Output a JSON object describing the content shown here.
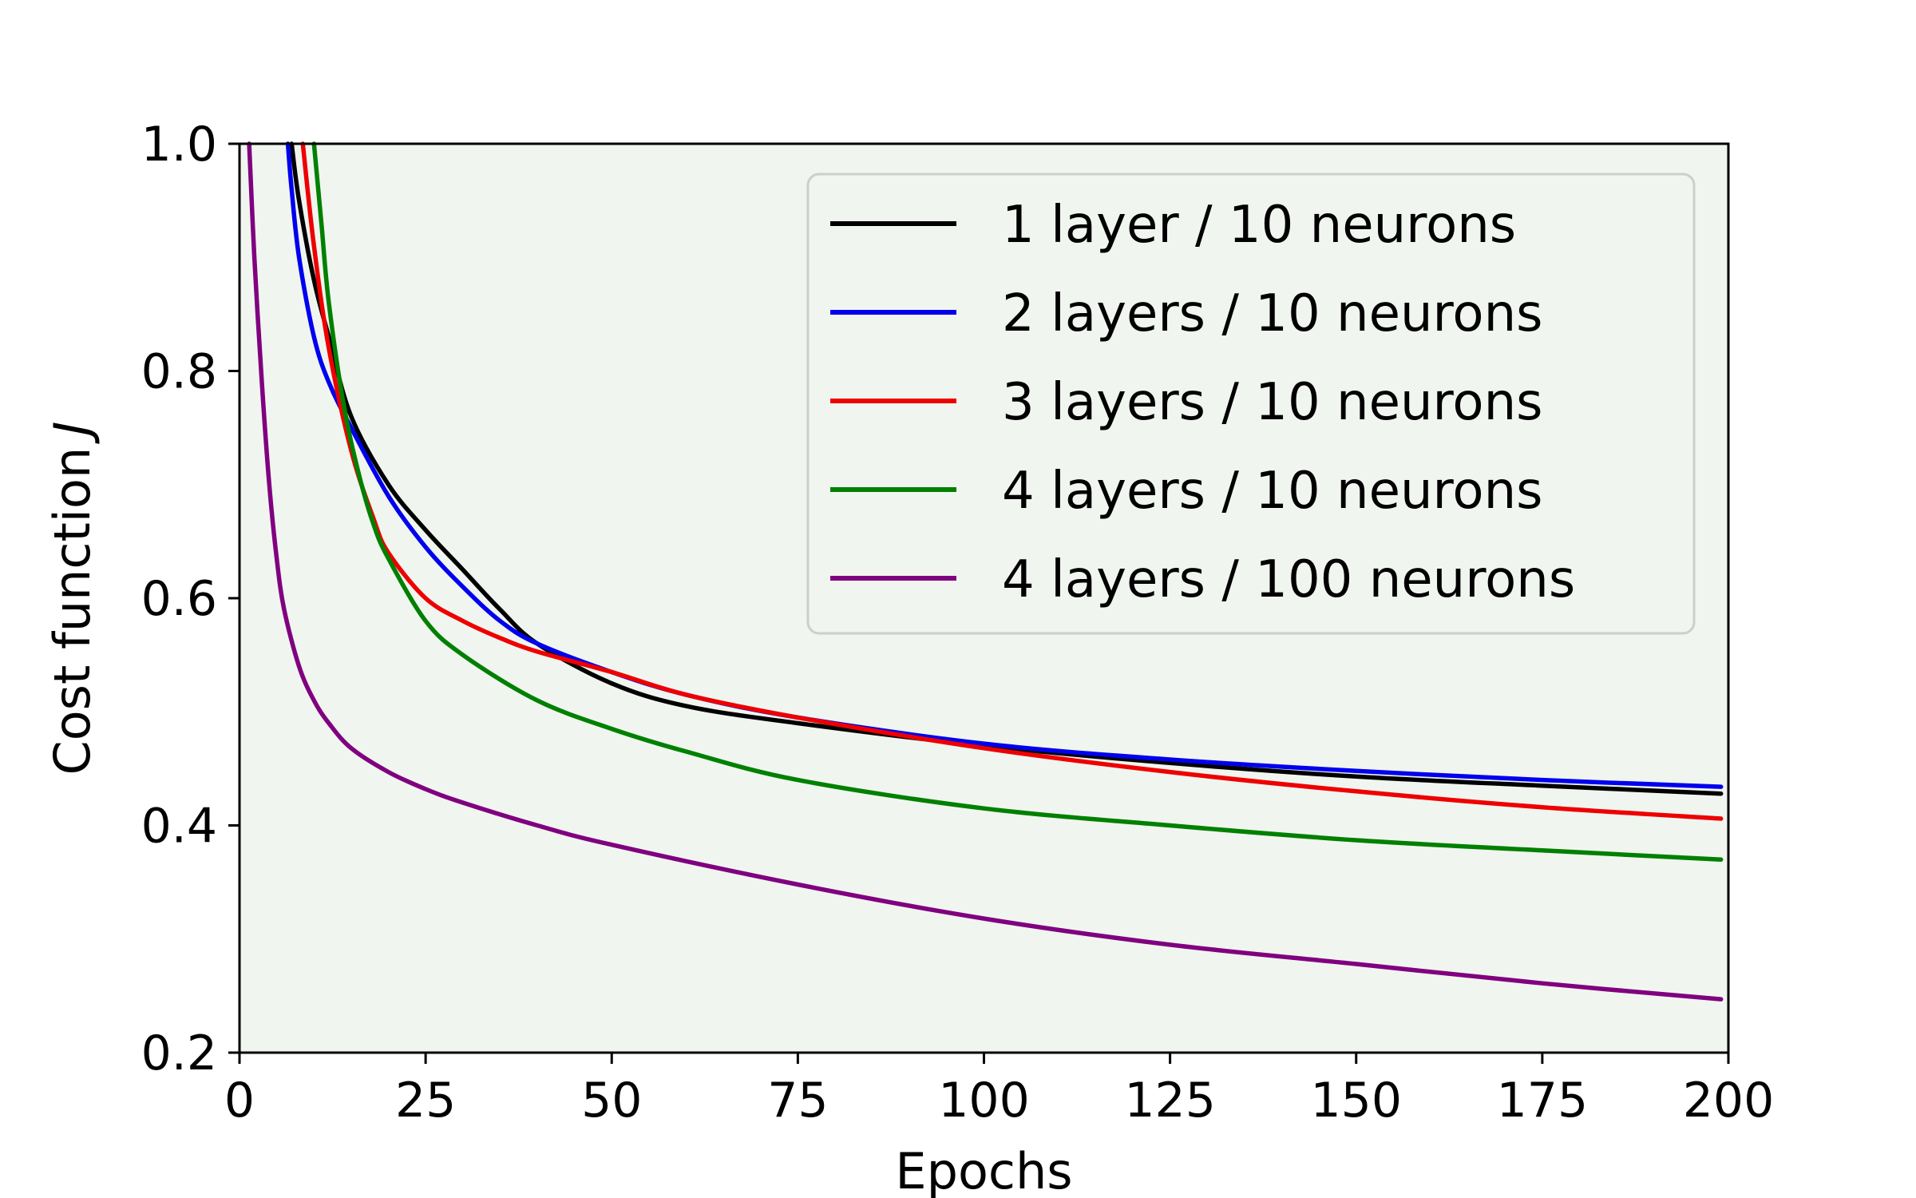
{
  "chart_data": {
    "type": "line",
    "xlabel": "Epochs",
    "ylabel": "Cost function",
    "ylabel_symbol": "J",
    "xlim": [
      0,
      200
    ],
    "ylim": [
      0.2,
      1.0
    ],
    "x_ticks": [
      0,
      25,
      50,
      75,
      100,
      125,
      150,
      175,
      200
    ],
    "y_ticks": [
      0.2,
      0.4,
      0.6,
      0.8,
      1.0
    ],
    "x_tick_labels": [
      "0",
      "25",
      "50",
      "75",
      "100",
      "125",
      "150",
      "175",
      "200"
    ],
    "y_tick_labels": [
      "0.2",
      "0.4",
      "0.6",
      "0.8",
      "1.0"
    ],
    "grid": false,
    "background_color": "#f0f5ef",
    "legend_position": "top-right",
    "series": [
      {
        "name": "1 layer / 10 neurons",
        "color": "#000000",
        "x": [
          7,
          8,
          10,
          12,
          15,
          20,
          25,
          30,
          35,
          40,
          50,
          60,
          75,
          100,
          125,
          150,
          175,
          199
        ],
        "y": [
          1.0,
          0.95,
          0.88,
          0.83,
          0.76,
          0.7,
          0.66,
          0.625,
          0.59,
          0.56,
          0.525,
          0.505,
          0.49,
          0.47,
          0.455,
          0.443,
          0.435,
          0.428
        ]
      },
      {
        "name": "2 layers / 10 neurons",
        "color": "#0000ee",
        "x": [
          6.5,
          7,
          8,
          10,
          12,
          15,
          20,
          25,
          30,
          35,
          40,
          50,
          60,
          75,
          100,
          125,
          150,
          175,
          199
        ],
        "y": [
          1.0,
          0.96,
          0.9,
          0.83,
          0.79,
          0.75,
          0.69,
          0.645,
          0.61,
          0.58,
          0.56,
          0.535,
          0.515,
          0.495,
          0.472,
          0.458,
          0.448,
          0.44,
          0.434
        ]
      },
      {
        "name": "3 layers / 10 neurons",
        "color": "#ee0000",
        "x": [
          8.5,
          10,
          12,
          15,
          18,
          20,
          25,
          30,
          35,
          40,
          50,
          60,
          75,
          100,
          125,
          150,
          175,
          199
        ],
        "y": [
          1.0,
          0.91,
          0.82,
          0.73,
          0.67,
          0.64,
          0.6,
          0.58,
          0.565,
          0.553,
          0.535,
          0.515,
          0.495,
          0.468,
          0.447,
          0.43,
          0.416,
          0.406
        ]
      },
      {
        "name": "4 layers / 10 neurons",
        "color": "#008000",
        "x": [
          10,
          11,
          12,
          14,
          16,
          18,
          20,
          25,
          30,
          40,
          50,
          60,
          75,
          100,
          125,
          150,
          175,
          199
        ],
        "y": [
          1.0,
          0.93,
          0.86,
          0.77,
          0.71,
          0.665,
          0.635,
          0.58,
          0.55,
          0.51,
          0.485,
          0.465,
          0.44,
          0.415,
          0.4,
          0.387,
          0.378,
          0.37
        ]
      },
      {
        "name": "4 layers / 100 neurons",
        "color": "#800080",
        "x": [
          1.3,
          2,
          3,
          4,
          5,
          6,
          8,
          10,
          12,
          15,
          20,
          25,
          30,
          40,
          50,
          75,
          100,
          125,
          150,
          175,
          199
        ],
        "y": [
          1.0,
          0.9,
          0.79,
          0.7,
          0.635,
          0.59,
          0.54,
          0.51,
          0.49,
          0.468,
          0.447,
          0.432,
          0.42,
          0.4,
          0.383,
          0.348,
          0.318,
          0.295,
          0.278,
          0.261,
          0.247
        ]
      }
    ]
  }
}
